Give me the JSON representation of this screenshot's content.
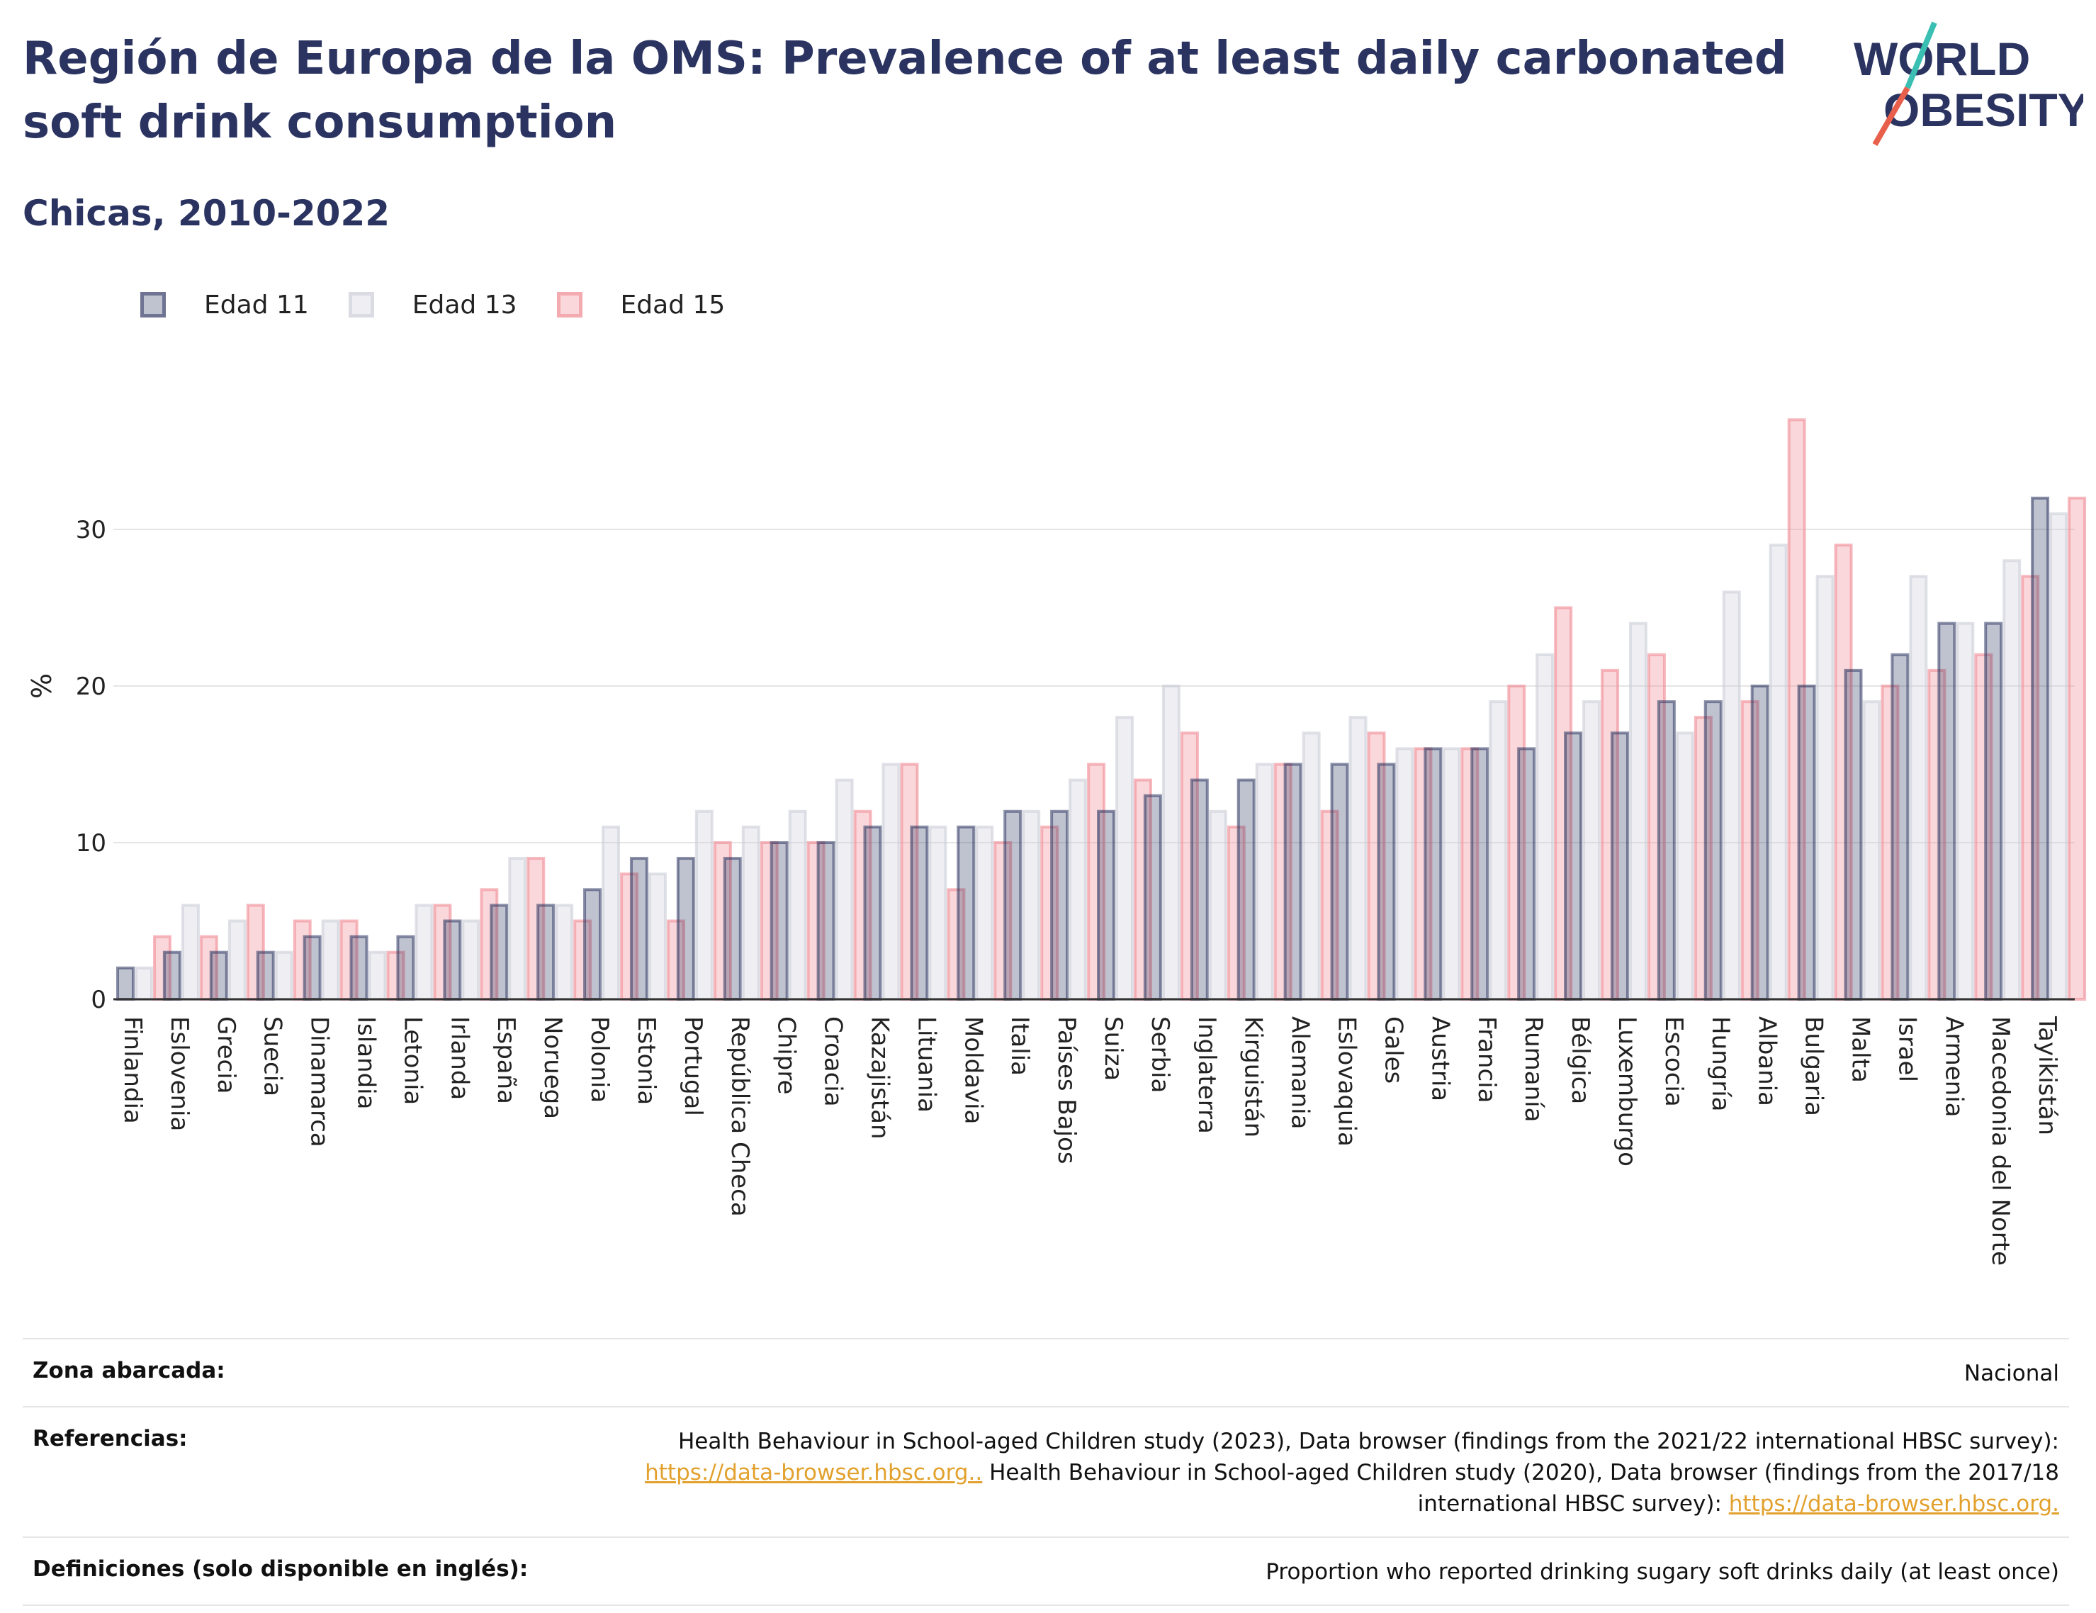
{
  "title": "Región de Europa de la OMS: Prevalence of at least daily carbonated soft drink consumption",
  "subtitle": "Chicas, 2010-2022",
  "logo": {
    "line1": "WORLD",
    "line2": "OBESITY"
  },
  "colors": {
    "title": "#2b3461",
    "age11": "#2b3461",
    "age13": "#c9cbd6",
    "age15": "#f08c96",
    "link": "#e2a12d"
  },
  "legend": [
    {
      "label": "Edad 11",
      "color_key": "age11"
    },
    {
      "label": "Edad 13",
      "color_key": "age13"
    },
    {
      "label": "Edad 15",
      "color_key": "age15"
    }
  ],
  "chart_data": {
    "type": "bar",
    "ylabel": "%",
    "xlabel": "",
    "ylim": [
      0,
      40
    ],
    "yticks": [
      0,
      10,
      20,
      30
    ],
    "grid": true,
    "legend_position": "top-left",
    "categories": [
      "Finlandia",
      "Eslovenia",
      "Grecia",
      "Suecia",
      "Dinamarca",
      "Islandia",
      "Letonia",
      "Irlanda",
      "España",
      "Noruega",
      "Polonia",
      "Estonia",
      "Portugal",
      "República Checa",
      "Chipre",
      "Croacia",
      "Kazajistán",
      "Lituania",
      "Moldavia",
      "Italia",
      "Países Bajos",
      "Suiza",
      "Serbia",
      "Inglaterra",
      "Kirguistán",
      "Alemania",
      "Eslovaquia",
      "Gales",
      "Austria",
      "Francia",
      "Rumanía",
      "Bélgica",
      "Luxemburgo",
      "Escocia",
      "Hungría",
      "Albania",
      "Bulgaria",
      "Malta",
      "Israel",
      "Armenia",
      "Macedonia del Norte",
      "Tayikistán"
    ],
    "series": [
      {
        "name": "Edad 11",
        "values": [
          2,
          3,
          3,
          3,
          4,
          4,
          4,
          5,
          6,
          6,
          7,
          9,
          9,
          9,
          10,
          10,
          11,
          11,
          11,
          12,
          12,
          12,
          13,
          14,
          14,
          15,
          15,
          15,
          16,
          16,
          16,
          17,
          17,
          19,
          19,
          20,
          20,
          21,
          22,
          24,
          24,
          32
        ]
      },
      {
        "name": "Edad 13",
        "values": [
          2,
          6,
          5,
          3,
          5,
          3,
          6,
          5,
          9,
          6,
          11,
          8,
          12,
          11,
          12,
          14,
          15,
          11,
          11,
          12,
          14,
          18,
          20,
          12,
          15,
          17,
          18,
          16,
          16,
          19,
          22,
          19,
          24,
          17,
          26,
          29,
          27,
          19,
          27,
          24,
          28,
          31
        ]
      },
      {
        "name": "Edad 15",
        "values": [
          4,
          4,
          6,
          5,
          5,
          3,
          6,
          7,
          9,
          5,
          8,
          5,
          10,
          10,
          10,
          12,
          15,
          7,
          10,
          11,
          15,
          14,
          17,
          11,
          15,
          12,
          17,
          16,
          16,
          20,
          25,
          21,
          22,
          18,
          19,
          37,
          29,
          20,
          21,
          22,
          27,
          32
        ]
      }
    ]
  },
  "footer": {
    "rows": [
      {
        "label": "Zona abarcada:",
        "value": "Nacional"
      },
      {
        "label": "Referencias:",
        "ref_part1": "Health Behaviour in School-aged Children study (2023), Data browser (findings from the 2021/22 international HBSC survey):",
        "ref_link1": "https://data-browser.hbsc.org..",
        "ref_part2": " Health Behaviour in School-aged Children study (2020), Data browser (findings from the 2017/18 international HBSC survey): ",
        "ref_link2": "https://data-browser.hbsc.org."
      },
      {
        "label": "Definiciones (solo disponible en inglés):",
        "value": "Proportion who reported drinking sugary soft drinks daily (at least once)"
      }
    ]
  }
}
